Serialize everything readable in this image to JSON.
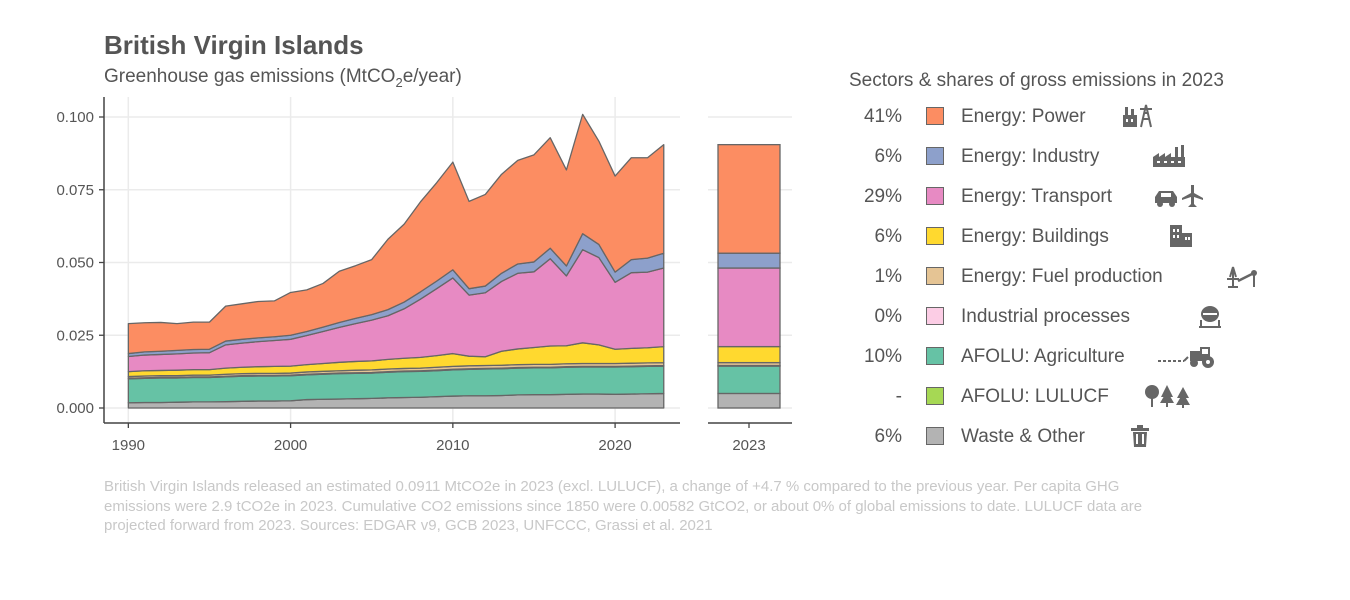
{
  "title": "British Virgin Islands",
  "subtitle_main": "Greenhouse gas emissions (MtCO",
  "subtitle_sub": "2",
  "subtitle_tail": "e/year)",
  "legend_title": "Sectors & shares of gross emissions in 2023",
  "caption": "British Virgin Islands released an estimated 0.0911 MtCO2e in 2023 (excl. LULUCF), a change of +4.7 % compared to the previous year. Per capita GHG emissions were 2.9 tCO2e in 2023. Cumulative CO2 emissions since 1850 were 0.00582 GtCO2, or about 0% of global emissions to date. LULUCF data are projected forward from 2023. Sources: EDGAR v9, GCB 2023, UNFCCC, Grassi et al. 2021",
  "chart_data": {
    "type": "area",
    "stacked": true,
    "ylim": [
      0,
      0.1
    ],
    "yticks": [
      "0.000",
      "0.025",
      "0.050",
      "0.075",
      "0.100"
    ],
    "ytick_values": [
      0,
      0.025,
      0.05,
      0.075,
      0.1
    ],
    "xticks": [
      "1990",
      "2000",
      "2010",
      "2020"
    ],
    "xtick_values": [
      1990,
      2000,
      2010,
      2020
    ],
    "bar_label": "2023",
    "grid": true,
    "legend_position": "right",
    "x": [
      1990,
      1991,
      1992,
      1993,
      1994,
      1995,
      1996,
      1997,
      1998,
      1999,
      2000,
      2001,
      2002,
      2003,
      2004,
      2005,
      2006,
      2007,
      2008,
      2009,
      2010,
      2011,
      2012,
      2013,
      2014,
      2015,
      2016,
      2017,
      2018,
      2019,
      2020,
      2021,
      2022,
      2023
    ],
    "series": [
      {
        "name": "Waste & Other",
        "share": "6%",
        "color": "#b3b3b3",
        "icon": "trash-icon",
        "values": [
          0.0018,
          0.0019,
          0.0019,
          0.002,
          0.0021,
          0.0021,
          0.0022,
          0.0023,
          0.0024,
          0.0024,
          0.0025,
          0.0029,
          0.003,
          0.0031,
          0.0032,
          0.0033,
          0.0035,
          0.0036,
          0.0037,
          0.0039,
          0.0041,
          0.0042,
          0.0042,
          0.0043,
          0.0045,
          0.0046,
          0.0046,
          0.0047,
          0.0048,
          0.0048,
          0.0047,
          0.0048,
          0.0049,
          0.005
        ]
      },
      {
        "name": "AFOLU: LULUCF",
        "share": "-",
        "color": "#a6d854",
        "icon": "trees-icon",
        "values": [
          0,
          0,
          0,
          0,
          0,
          0,
          0,
          0,
          0,
          0,
          0,
          0,
          0,
          0,
          0,
          0,
          0,
          0,
          0,
          0,
          0,
          0,
          0,
          0,
          0,
          0,
          0,
          0,
          0,
          0,
          0,
          0,
          0,
          0
        ]
      },
      {
        "name": "AFOLU: Agriculture",
        "share": "10%",
        "color": "#66c2a5",
        "icon": "tractor-icon",
        "values": [
          0.0082,
          0.0083,
          0.0084,
          0.0083,
          0.0084,
          0.0084,
          0.0085,
          0.0086,
          0.0086,
          0.0086,
          0.0086,
          0.0085,
          0.0086,
          0.0087,
          0.0087,
          0.0087,
          0.0088,
          0.0089,
          0.0089,
          0.0089,
          0.009,
          0.0091,
          0.0092,
          0.0092,
          0.0092,
          0.0092,
          0.0092,
          0.0093,
          0.0093,
          0.0093,
          0.0094,
          0.0094,
          0.0094,
          0.0094
        ]
      },
      {
        "name": "Industrial processes",
        "share": "0%",
        "color": "#fccde5",
        "icon": "cement-mixer-icon",
        "values": [
          0.0002,
          0.0002,
          0.0002,
          0.0002,
          0.0002,
          0.0002,
          0.0002,
          0.0002,
          0.0002,
          0.0002,
          0.0002,
          0.0002,
          0.0002,
          0.0002,
          0.0002,
          0.0002,
          0.0002,
          0.0002,
          0.0002,
          0.0002,
          0.0002,
          0.0002,
          0.0002,
          0.0002,
          0.0002,
          0.0002,
          0.0002,
          0.0002,
          0.0002,
          0.0002,
          0.0002,
          0.0002,
          0.0002,
          0.0002
        ]
      },
      {
        "name": "Energy: Fuel production",
        "share": "1%",
        "color": "#e5c494",
        "icon": "oil-rig-icon",
        "values": [
          0.0006,
          0.0006,
          0.0006,
          0.0006,
          0.0006,
          0.0006,
          0.0007,
          0.0007,
          0.0007,
          0.0007,
          0.0007,
          0.0008,
          0.0008,
          0.0008,
          0.0009,
          0.0009,
          0.0009,
          0.0009,
          0.0009,
          0.001,
          0.001,
          0.001,
          0.001,
          0.001,
          0.001,
          0.001,
          0.001,
          0.001,
          0.001,
          0.001,
          0.001,
          0.001,
          0.001,
          0.001
        ]
      },
      {
        "name": "Energy: Buildings",
        "share": "6%",
        "color": "#ffd92f",
        "icon": "buildings-icon",
        "values": [
          0.0017,
          0.0018,
          0.0018,
          0.0019,
          0.0019,
          0.0019,
          0.0021,
          0.0022,
          0.0023,
          0.0024,
          0.0024,
          0.0025,
          0.0027,
          0.0029,
          0.003,
          0.0031,
          0.0033,
          0.0035,
          0.0037,
          0.004,
          0.0044,
          0.0033,
          0.003,
          0.0048,
          0.0054,
          0.0058,
          0.0063,
          0.0062,
          0.0071,
          0.0064,
          0.0049,
          0.0051,
          0.0052,
          0.0055
        ]
      },
      {
        "name": "Energy: Transport",
        "share": "29%",
        "color": "#e78ac3",
        "icon": "car-plane-icon",
        "values": [
          0.0052,
          0.0054,
          0.0055,
          0.0056,
          0.0057,
          0.0058,
          0.008,
          0.0083,
          0.0086,
          0.0089,
          0.0092,
          0.01,
          0.011,
          0.012,
          0.013,
          0.014,
          0.015,
          0.017,
          0.02,
          0.023,
          0.026,
          0.021,
          0.022,
          0.024,
          0.026,
          0.026,
          0.03,
          0.024,
          0.032,
          0.03,
          0.023,
          0.026,
          0.026,
          0.027
        ]
      },
      {
        "name": "Energy: Industry",
        "share": "6%",
        "color": "#8da0cb",
        "icon": "factory-icon",
        "values": [
          0.001,
          0.0011,
          0.0011,
          0.0012,
          0.0012,
          0.0012,
          0.0013,
          0.0013,
          0.0013,
          0.0013,
          0.0014,
          0.0014,
          0.0015,
          0.0017,
          0.0018,
          0.0019,
          0.0021,
          0.0023,
          0.0025,
          0.0026,
          0.0028,
          0.0022,
          0.0023,
          0.0028,
          0.0032,
          0.0034,
          0.0036,
          0.0034,
          0.0055,
          0.0045,
          0.0035,
          0.0045,
          0.0048,
          0.0051
        ]
      },
      {
        "name": "Energy: Power",
        "share": "41%",
        "color": "#fc8d62",
        "icon": "power-plant-icon",
        "values": [
          0.0103,
          0.01,
          0.0099,
          0.0092,
          0.0094,
          0.0093,
          0.012,
          0.0122,
          0.0125,
          0.0123,
          0.0147,
          0.0143,
          0.015,
          0.0176,
          0.0181,
          0.0189,
          0.0242,
          0.0268,
          0.0309,
          0.0338,
          0.037,
          0.03,
          0.0315,
          0.034,
          0.0356,
          0.0368,
          0.038,
          0.033,
          0.041,
          0.0355,
          0.033,
          0.035,
          0.0345,
          0.0373
        ]
      }
    ]
  }
}
